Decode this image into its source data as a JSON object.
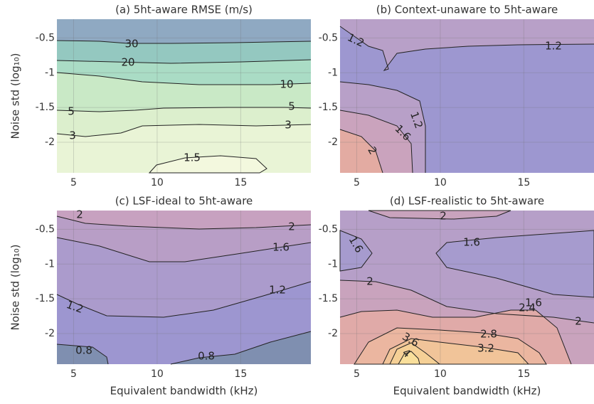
{
  "chart_data": [
    {
      "type": "contour",
      "title": "(a) 5ht-aware RMSE (m/s)",
      "ylabel": "Noise std (log₁₀)",
      "xlim": [
        4,
        19.2
      ],
      "ylim": [
        -2.44,
        -0.23
      ],
      "xticks": [
        5,
        10,
        15
      ],
      "yticks": [
        -0.5,
        -1,
        -1.5,
        -2
      ],
      "grid": true,
      "levels": [
        30,
        20,
        10,
        5,
        3,
        1.5
      ],
      "base_color": "#e9f4d6",
      "fill_colors": [
        "#8fa9c2",
        "#94c8c0",
        "#aadcc5",
        "#c9e9c6",
        "#dcefcd",
        "#f3f8de"
      ]
    },
    {
      "type": "contour",
      "title": "(b) Context-unaware to 5ht-aware",
      "xlim": [
        4,
        19.2
      ],
      "ylim": [
        -2.44,
        -0.23
      ],
      "xticks": [
        5,
        10,
        15
      ],
      "yticks": [
        -0.5,
        -1,
        -1.5,
        -2
      ],
      "grid": true,
      "levels": [
        1.2,
        1.6,
        2
      ],
      "base_color": "#9d97d0",
      "fill_colors": [
        "#b8a0c8",
        "#caa3bd",
        "#e3aba2"
      ]
    },
    {
      "type": "contour",
      "title": "(c) LSF-ideal to 5ht-aware",
      "xlabel": "Equivalent bandwidth (kHz)",
      "ylabel": "Noise std (log₁₀)",
      "xlim": [
        4,
        19.2
      ],
      "ylim": [
        -2.44,
        -0.23
      ],
      "xticks": [
        5,
        10,
        15
      ],
      "yticks": [
        -0.5,
        -1,
        -1.5,
        -2
      ],
      "grid": true,
      "levels": [
        2,
        1.6,
        1.2,
        0.8
      ],
      "base_color": "#ab9bcc",
      "fill_colors": [
        "#c7a1c0",
        "#b89ec6",
        "#9d96d0",
        "#7f8fb0"
      ]
    },
    {
      "type": "contour",
      "title": "(d) LSF-realistic to 5ht-aware",
      "xlabel": "Equivalent bandwidth (kHz)",
      "xlim": [
        4,
        19.2
      ],
      "ylim": [
        -2.44,
        -0.23
      ],
      "xticks": [
        5,
        10,
        15
      ],
      "yticks": [
        -0.5,
        -1,
        -1.5,
        -2
      ],
      "grid": true,
      "levels": [
        2,
        1.6,
        2.4,
        2.8,
        3.2,
        3.6,
        4
      ],
      "base_color": "#b69fc8",
      "fill_colors": [
        "#c9a3bd",
        "#a69bce",
        "#e0aaa8",
        "#ebb6a0",
        "#f1c499",
        "#f5d096",
        "#f9df9b"
      ]
    }
  ]
}
